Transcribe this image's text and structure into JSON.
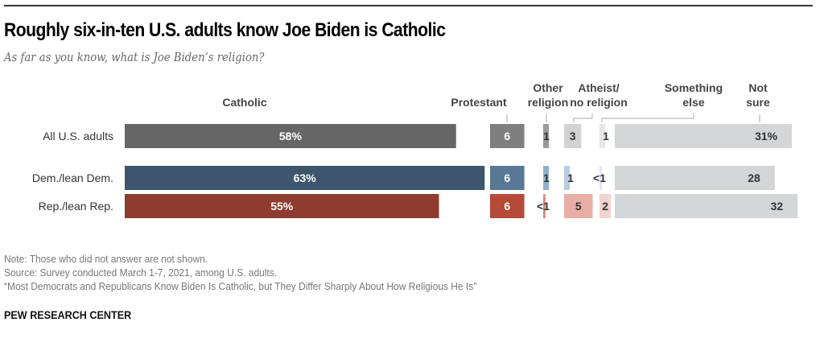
{
  "chart_data": {
    "type": "bar",
    "orientation": "horizontal",
    "stacked": false,
    "title": "Roughly six-in-ten U.S. adults know Joe Biden is Catholic",
    "subtitle": "As far as you know, what is Joe Biden’s religion?",
    "categories": [
      "All U.S. adults",
      "Dem./lean Dem.",
      "Rep./lean Rep."
    ],
    "series": [
      {
        "name": "Catholic",
        "values": [
          58,
          63,
          55
        ],
        "labels": [
          "58%",
          "63",
          "55"
        ],
        "display_labels": [
          "58%",
          "63%",
          "55%"
        ]
      },
      {
        "name": "Protestant",
        "values": [
          6,
          6,
          6
        ],
        "labels": [
          "6",
          "6",
          "6"
        ]
      },
      {
        "name": "Other religion",
        "values": [
          1,
          1,
          0.4
        ],
        "labels": [
          "1",
          "1",
          "<1"
        ]
      },
      {
        "name": "Atheist/ no religion",
        "values": [
          3,
          1,
          5
        ],
        "labels": [
          "3",
          "1",
          "5"
        ]
      },
      {
        "name": "Something else",
        "values": [
          1,
          0.4,
          2
        ],
        "labels": [
          "1",
          "<1",
          "2"
        ]
      },
      {
        "name": "Not sure",
        "values": [
          31,
          28,
          32
        ],
        "labels": [
          "31%",
          "28",
          "32"
        ]
      }
    ],
    "header_lines": [
      [
        "Catholic"
      ],
      [
        "Protestant"
      ],
      [
        "Other",
        "religion"
      ],
      [
        "Atheist/",
        "no religion"
      ],
      [
        "Something",
        "else"
      ],
      [
        "Not",
        "sure"
      ]
    ],
    "colors": {
      "all": [
        "#666666",
        "#7f7f7f",
        "#9a9a9a",
        "#d2d2d2",
        "#e6e6e6",
        "#d4d5d7"
      ],
      "dem": [
        "#3d566e",
        "#587896",
        "#8fb0cc",
        "#b8cde0",
        "#dde6ef",
        "#d4d5d7"
      ],
      "rep": [
        "#8e3b30",
        "#b64a39",
        "#d9897c",
        "#e8aea5",
        "#f2d3ce",
        "#d4d5d7"
      ]
    },
    "grid": false,
    "legend": "column-headers-top"
  },
  "footer": {
    "note": "Note: Those who did not answer are not shown.",
    "source": "Source: Survey conducted March 1-7, 2021, among U.S. adults.",
    "report": "“Most Democrats and Republicans Know Biden Is Catholic, but They Differ Sharply About How Religious He Is”",
    "brand": "PEW RESEARCH CENTER"
  }
}
